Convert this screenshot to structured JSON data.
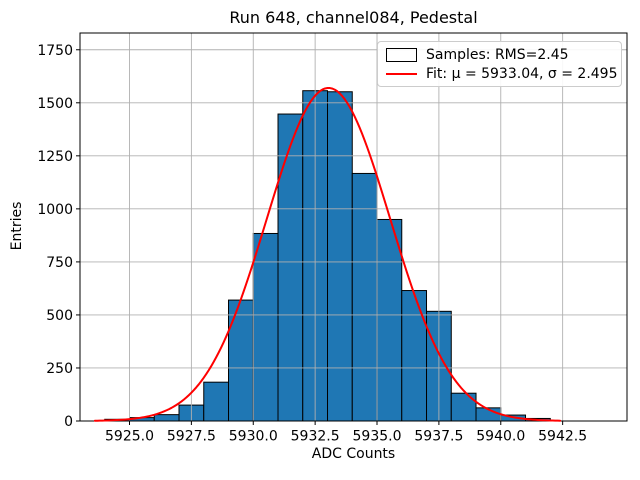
{
  "chart_data": {
    "type": "bar",
    "subtype": "histogram_with_gaussian_fit",
    "title": "Run 648, channel084, Pedestal",
    "xlabel": "ADC Counts",
    "ylabel": "Entries",
    "xlim": [
      5923.0,
      5945.1
    ],
    "ylim": [
      0,
      1829
    ],
    "xtick_labels": [
      "5925.0",
      "5927.5",
      "5930.0",
      "5932.5",
      "5935.0",
      "5937.5",
      "5940.0",
      "5942.5"
    ],
    "ytick_labels": [
      "0",
      "250",
      "500",
      "750",
      "1000",
      "1250",
      "1500",
      "1750"
    ],
    "grid": true,
    "legend_position": "upper right",
    "colors": {
      "bar_fill": "#1f77b4",
      "bar_edge": "#000000",
      "fit_line": "#ff0000",
      "grid": "#b0b0b0",
      "spine": "#000000",
      "text": "#000000"
    },
    "series": [
      {
        "name": "samples_histogram",
        "type": "bar",
        "legend": "Samples: RMS=2.45",
        "rms": 2.45,
        "bin_start": 5924,
        "bin_width": 1,
        "bin_edges": [
          5924,
          5925,
          5926,
          5927,
          5928,
          5929,
          5930,
          5931,
          5932,
          5933,
          5934,
          5935,
          5936,
          5937,
          5938,
          5939,
          5940,
          5941,
          5942
        ],
        "counts": [
          8,
          16,
          30,
          75,
          183,
          570,
          884,
          1447,
          1557,
          1552,
          1167,
          950,
          615,
          517,
          131,
          62,
          28,
          12
        ]
      },
      {
        "name": "gaussian_fit",
        "type": "line",
        "legend": "Fit: μ = 5933.04, σ = 2.495",
        "mu": 5933.04,
        "sigma": 2.495,
        "amplitude": 1570,
        "x_range": [
          5923.6,
          5942.4
        ]
      }
    ]
  }
}
